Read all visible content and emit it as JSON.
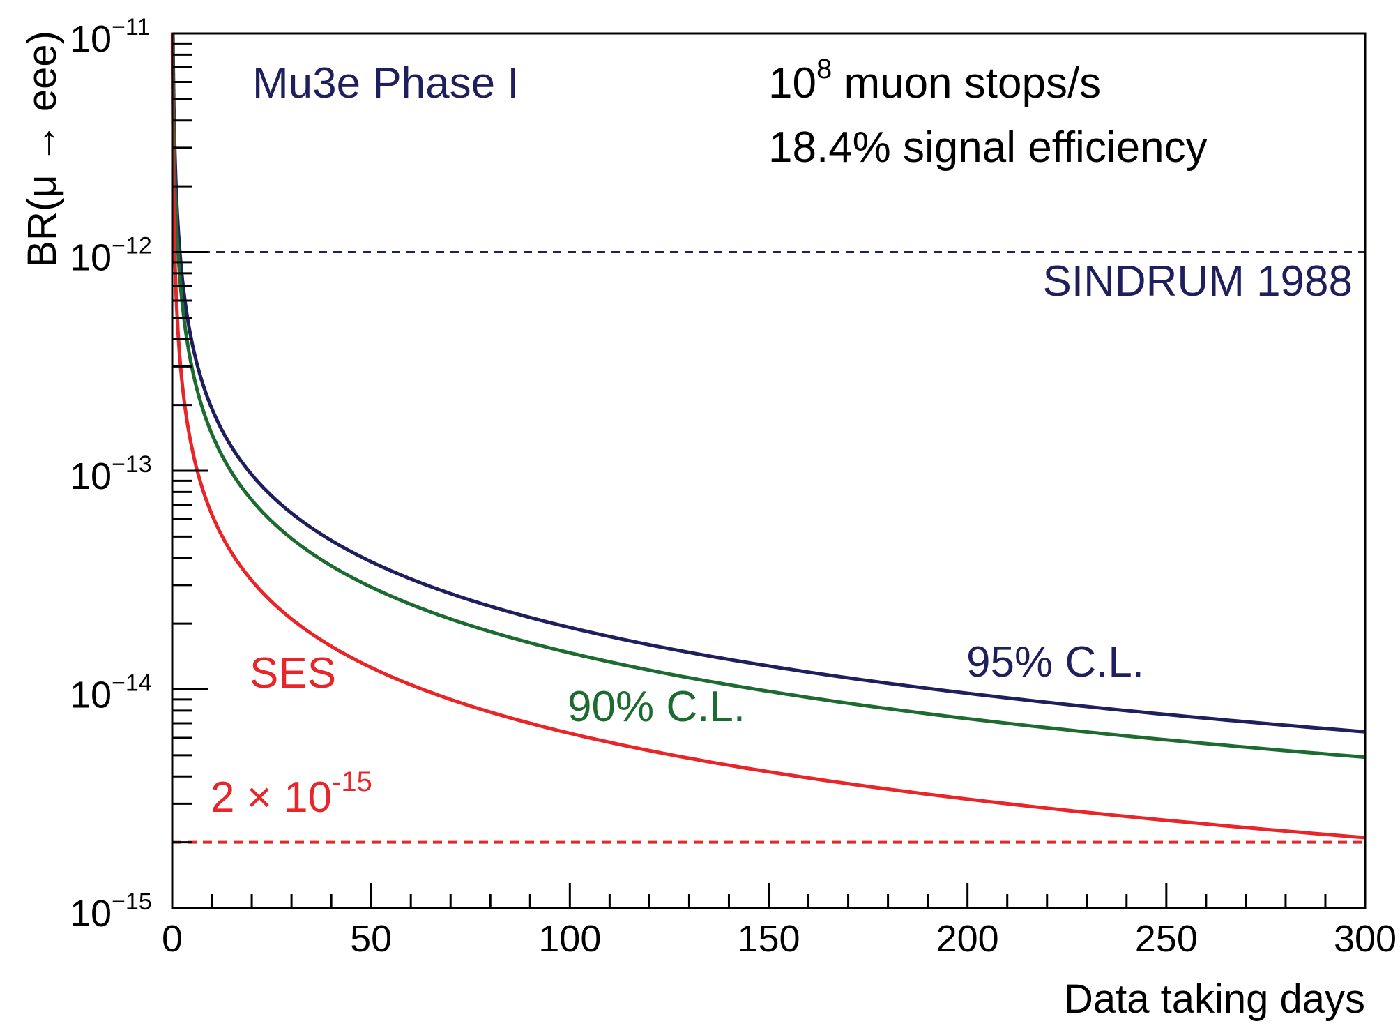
{
  "colors": {
    "ul95": "#1f1f5e",
    "ul90": "#1e6b32",
    "ses": "#e8262a",
    "sindrum": "#1f1f5e",
    "axis": "#000000"
  },
  "chart_data": {
    "type": "line",
    "xlabel": "Data taking days",
    "ylabel": "BR(μ → eee)",
    "xlim": [
      0,
      300
    ],
    "ylim": [
      1e-15,
      1e-11
    ],
    "yscale": "log",
    "x_ticks": [
      {
        "value": 0,
        "label": "0"
      },
      {
        "value": 50,
        "label": "50"
      },
      {
        "value": 100,
        "label": "100"
      },
      {
        "value": 150,
        "label": "150"
      },
      {
        "value": 200,
        "label": "200"
      },
      {
        "value": 250,
        "label": "250"
      },
      {
        "value": 300,
        "label": "300"
      }
    ],
    "y_ticks": [
      {
        "value": 1e-15,
        "base": "10",
        "exp": "−15"
      },
      {
        "value": 1e-14,
        "base": "10",
        "exp": "−14"
      },
      {
        "value": 1e-13,
        "base": "10",
        "exp": "−13"
      },
      {
        "value": 1e-12,
        "base": "10",
        "exp": "−12"
      },
      {
        "value": 1e-11,
        "base": "10",
        "exp": "−11"
      }
    ],
    "series": [
      {
        "name": "95% C.L.",
        "key": "ul95",
        "coefficient": 1.92e-12,
        "style": "solid",
        "x": [
          1,
          2,
          5,
          10,
          20,
          50,
          100,
          150,
          200,
          250,
          300
        ],
        "values": [
          1.92e-12,
          9.6e-13,
          3.84e-13,
          1.92e-13,
          9.6e-14,
          3.84e-14,
          1.92e-14,
          1.28e-14,
          9.6e-15,
          7.7e-15,
          6.4e-15
        ]
      },
      {
        "name": "90% C.L.",
        "key": "ul90",
        "coefficient": 1.47e-12,
        "style": "solid",
        "x": [
          1,
          2,
          5,
          10,
          20,
          50,
          100,
          150,
          200,
          250,
          300
        ],
        "values": [
          1.47e-12,
          7.35e-13,
          2.94e-13,
          1.47e-13,
          7.35e-14,
          2.94e-14,
          1.47e-14,
          9.8e-15,
          7.35e-15,
          5.9e-15,
          4.9e-15
        ]
      },
      {
        "name": "SES",
        "key": "ses",
        "coefficient": 6.3e-13,
        "style": "solid",
        "x": [
          1,
          2,
          5,
          10,
          20,
          50,
          100,
          150,
          200,
          250,
          300
        ],
        "values": [
          6.3e-13,
          3.15e-13,
          1.26e-13,
          6.3e-14,
          3.15e-14,
          1.26e-14,
          6.3e-15,
          4.2e-15,
          3.15e-15,
          2.52e-15,
          2.1e-15
        ]
      }
    ],
    "reference_lines": [
      {
        "name": "SINDRUM 1988",
        "value": 1e-12,
        "key": "sindrum",
        "style": "dashed"
      },
      {
        "name": "2e-15",
        "value": 2e-15,
        "key": "ses",
        "style": "dashed"
      }
    ],
    "annotations": {
      "experiment": "Mu3e Phase I",
      "rate_base": "10",
      "rate_exp": "8",
      "rate_rest": " muon stops/s",
      "efficiency": "18.4% signal efficiency",
      "sindrum": "SINDRUM 1988",
      "ul95": "95% C.L.",
      "ul90": "90% C.L.",
      "ses": "SES",
      "ses_limit_base": "2 × 10",
      "ses_limit_exp": "-15"
    }
  }
}
